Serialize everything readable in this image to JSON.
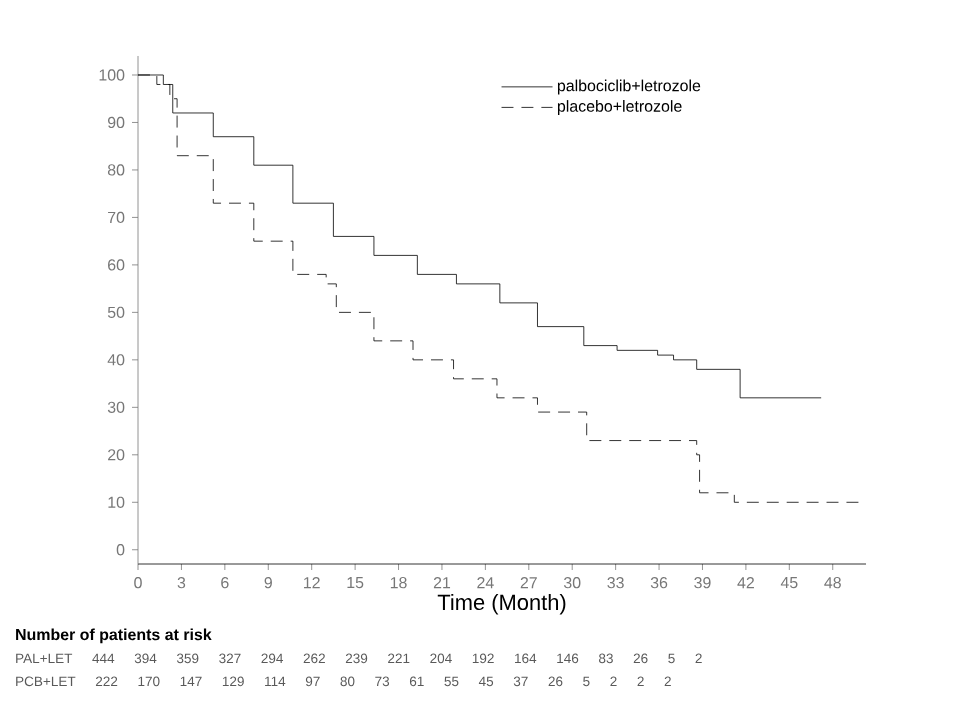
{
  "chart_data": {
    "type": "step",
    "xlabel": "Time (Month)",
    "xlim": [
      0,
      50.3
    ],
    "ylim": [
      -3,
      104
    ],
    "xticks": [
      0,
      3,
      6,
      9,
      12,
      15,
      18,
      21,
      24,
      27,
      30,
      33,
      36,
      39,
      42,
      45,
      48
    ],
    "yticks": [
      0,
      10,
      20,
      30,
      40,
      50,
      60,
      70,
      80,
      90,
      100
    ],
    "legend": "top right",
    "series": [
      {
        "name": "palbociclib+letrozole",
        "color": "#000000",
        "line_style": "solid",
        "x": [
          0,
          1.75,
          2.4,
          5.2,
          8,
          10.7,
          13.5,
          16.3,
          19.3,
          22,
          25,
          27.6,
          30.8,
          33.1,
          35.9,
          37,
          38.6,
          41.6,
          47.2
        ],
        "values": [
          100,
          98,
          92,
          87,
          81,
          73,
          66,
          62,
          58,
          56,
          52,
          47,
          43,
          42,
          41,
          40,
          38,
          32,
          32
        ]
      },
      {
        "name": "placebo+letrozole",
        "color": "#000000",
        "line_style": "dashed",
        "x": [
          0,
          1.3,
          2.2,
          2.7,
          5.2,
          8,
          10.7,
          13,
          13.7,
          16.3,
          19,
          21.8,
          24.8,
          27.6,
          31,
          38.6,
          38.8,
          41.2,
          49.9
        ],
        "values": [
          100,
          98,
          95,
          83,
          73,
          65,
          58,
          56,
          50,
          44,
          40,
          36,
          32,
          29,
          23,
          20,
          12,
          10,
          10
        ]
      }
    ],
    "annotations": [
      "Number of patients at risk",
      "PAL+LET 444 394 359 327 294 262 239 221 204 192 164 146 83 26 5 2",
      "PCB+LET 222 170 147 129 114 97 80 73 61 55 45 37 26 5 2 2 2"
    ]
  }
}
